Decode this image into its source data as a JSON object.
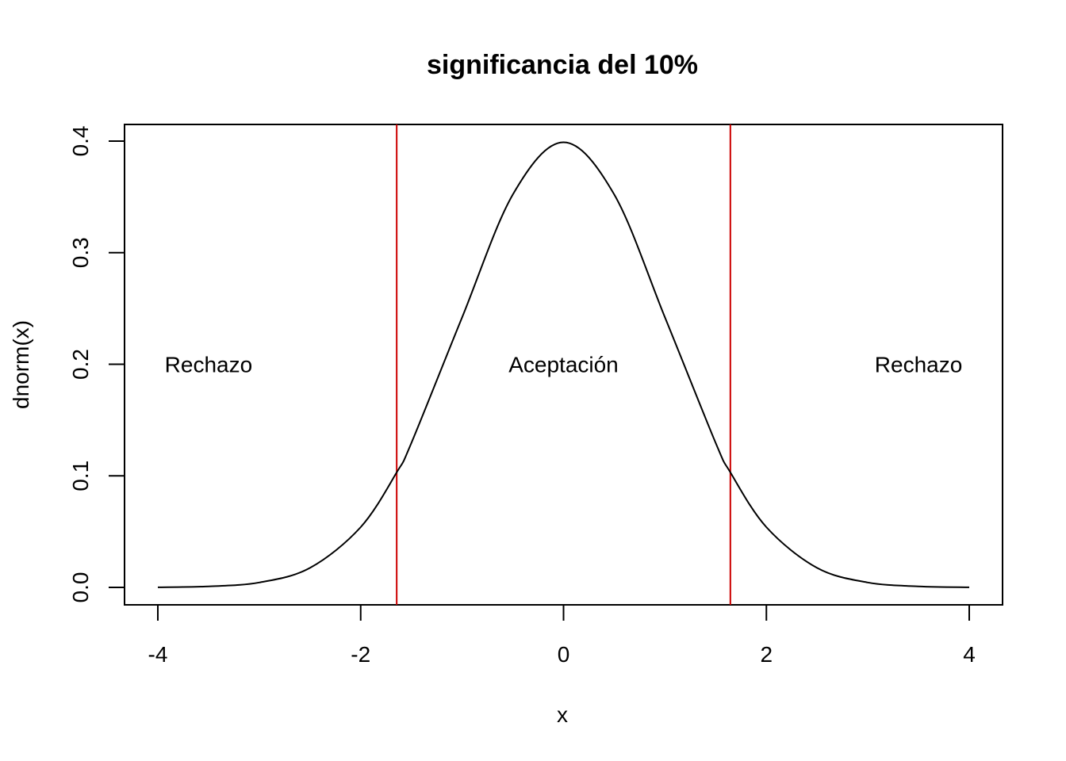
{
  "chart_data": {
    "type": "line",
    "title": "significancia del 10%",
    "xlabel": "x",
    "ylabel": "dnorm(x)",
    "xlim": [
      -4,
      4
    ],
    "ylim": [
      0,
      0.4
    ],
    "x_ticks": [
      "-4",
      "-2",
      "0",
      "2",
      "4"
    ],
    "y_ticks": [
      "0.0",
      "0.1",
      "0.2",
      "0.3",
      "0.4"
    ],
    "grid": false,
    "series": [
      {
        "x": [
          -4.0,
          -3.5,
          -3.0,
          -2.5,
          -2.0,
          -1.6449,
          -1.5,
          -1.0,
          -0.5,
          0.0,
          0.5,
          1.0,
          1.5,
          1.6449,
          2.0,
          2.5,
          3.0,
          3.5,
          4.0
        ],
        "y": [
          0.0001,
          0.0009,
          0.0044,
          0.0175,
          0.054,
          0.1031,
          0.1295,
          0.242,
          0.3521,
          0.3989,
          0.3521,
          0.242,
          0.1295,
          0.1031,
          0.054,
          0.0175,
          0.0044,
          0.0009,
          0.0001
        ],
        "color": "#000000"
      }
    ],
    "vlines": [
      {
        "x": -1.6449,
        "color": "#cc0000"
      },
      {
        "x": 1.6449,
        "color": "#cc0000"
      }
    ],
    "annotations": [
      {
        "text": "Rechazo",
        "x": -3.5,
        "y": 0.2
      },
      {
        "text": "Aceptación",
        "x": 0,
        "y": 0.2
      },
      {
        "text": "Rechazo",
        "x": 3.5,
        "y": 0.2
      }
    ]
  }
}
